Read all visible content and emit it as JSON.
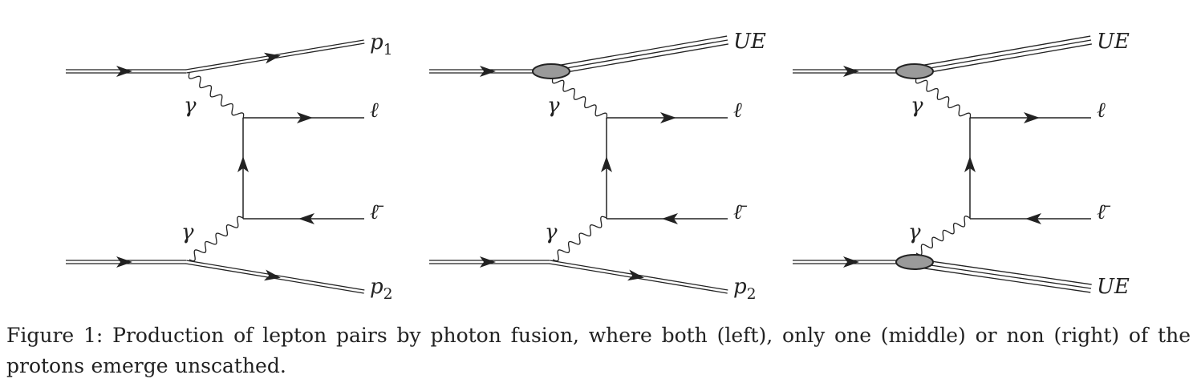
{
  "diagrams": [
    {
      "labels": {
        "top": {
          "main": "p",
          "sub": "1"
        },
        "lepton": "ℓ",
        "antilepton": "ℓ̄",
        "photon_top": "γ",
        "photon_bottom": "γ",
        "bottom": {
          "main": "p",
          "sub": "2"
        }
      },
      "top_blob": false,
      "bottom_blob": false
    },
    {
      "labels": {
        "top": {
          "main": "UE",
          "sub": ""
        },
        "lepton": "ℓ",
        "antilepton": "ℓ̄",
        "photon_top": "γ",
        "photon_bottom": "γ",
        "bottom": {
          "main": "p",
          "sub": "2"
        }
      },
      "top_blob": true,
      "bottom_blob": false
    },
    {
      "labels": {
        "top": {
          "main": "UE",
          "sub": ""
        },
        "lepton": "ℓ",
        "antilepton": "ℓ̄",
        "photon_top": "γ",
        "photon_bottom": "γ",
        "bottom": {
          "main": "UE",
          "sub": ""
        }
      },
      "top_blob": true,
      "bottom_blob": true
    }
  ],
  "caption": {
    "text": "Figure 1: Production of lepton pairs by photon fusion, where both (left), only one (middle) or non (right) of the protons emerge unscathed."
  }
}
